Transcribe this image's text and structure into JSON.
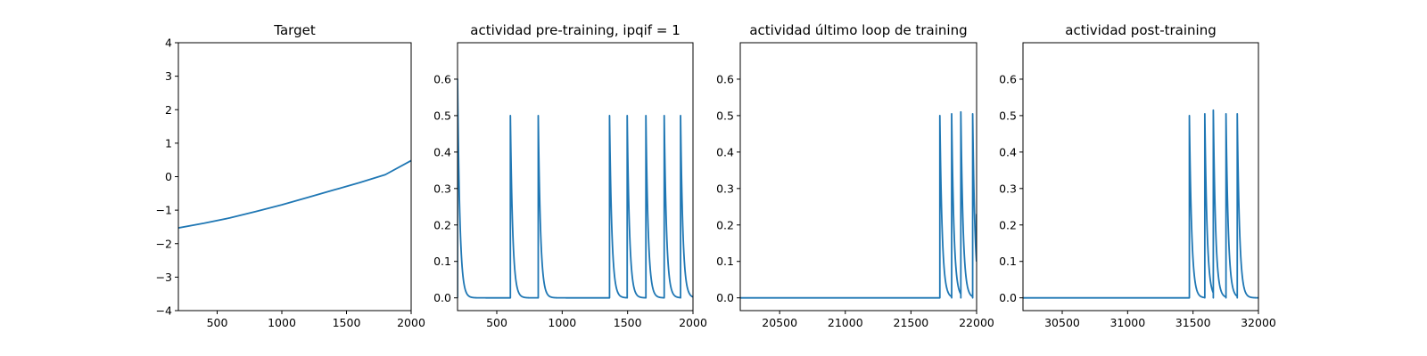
{
  "chart_data": [
    {
      "type": "line",
      "title": "Target",
      "xlim": [
        200,
        2000
      ],
      "ylim": [
        -4,
        4
      ],
      "xticks": [
        500,
        1000,
        1500,
        2000
      ],
      "yticks": [
        -4,
        -3,
        -2,
        -1,
        0,
        1,
        2,
        3,
        4
      ],
      "color": "#1f77b4",
      "x": [
        200,
        400,
        600,
        800,
        1000,
        1200,
        1400,
        1600,
        1800,
        2000
      ],
      "y": [
        -1.53,
        -1.39,
        -1.23,
        -1.04,
        -0.84,
        -0.62,
        -0.4,
        -0.18,
        0.06,
        0.48
      ]
    },
    {
      "type": "line",
      "title": "actividad pre-training, ipqif = 1",
      "xlim": [
        200,
        2000
      ],
      "ylim": [
        -0.035,
        0.7
      ],
      "xticks": [
        500,
        1000,
        1500,
        2000
      ],
      "yticks": [
        0.0,
        0.1,
        0.2,
        0.3,
        0.4,
        0.5,
        0.6
      ],
      "color": "#1f77b4",
      "baseline": 0.0,
      "tau": 18,
      "spikes": [
        {
          "x": 200,
          "peak": 0.6
        },
        {
          "x": 604,
          "peak": 0.5
        },
        {
          "x": 817,
          "peak": 0.5
        },
        {
          "x": 1362,
          "peak": 0.5
        },
        {
          "x": 1497,
          "peak": 0.5
        },
        {
          "x": 1640,
          "peak": 0.5
        },
        {
          "x": 1780,
          "peak": 0.5
        },
        {
          "x": 1905,
          "peak": 0.5
        }
      ]
    },
    {
      "type": "line",
      "title": "actividad último loop de training",
      "xlim": [
        20200,
        22000
      ],
      "ylim": [
        -0.035,
        0.7
      ],
      "xticks": [
        20500,
        21000,
        21500,
        22000
      ],
      "yticks": [
        0.0,
        0.1,
        0.2,
        0.3,
        0.4,
        0.5,
        0.6
      ],
      "color": "#1f77b4",
      "baseline": 0.0,
      "tau": 18,
      "spikes": [
        {
          "x": 21720,
          "peak": 0.5
        },
        {
          "x": 21810,
          "peak": 0.505
        },
        {
          "x": 21880,
          "peak": 0.51
        },
        {
          "x": 21970,
          "peak": 0.505
        }
      ],
      "end_value": 0.23
    },
    {
      "type": "line",
      "title": "actividad post-training",
      "xlim": [
        30200,
        32000
      ],
      "ylim": [
        -0.035,
        0.7
      ],
      "xticks": [
        30500,
        31000,
        31500,
        32000
      ],
      "yticks": [
        0.0,
        0.1,
        0.2,
        0.3,
        0.4,
        0.5,
        0.6
      ],
      "color": "#1f77b4",
      "baseline": 0.0,
      "tau": 18,
      "spikes": [
        {
          "x": 31472,
          "peak": 0.5
        },
        {
          "x": 31590,
          "peak": 0.505
        },
        {
          "x": 31655,
          "peak": 0.515
        },
        {
          "x": 31752,
          "peak": 0.505
        },
        {
          "x": 31838,
          "peak": 0.505
        }
      ]
    }
  ]
}
